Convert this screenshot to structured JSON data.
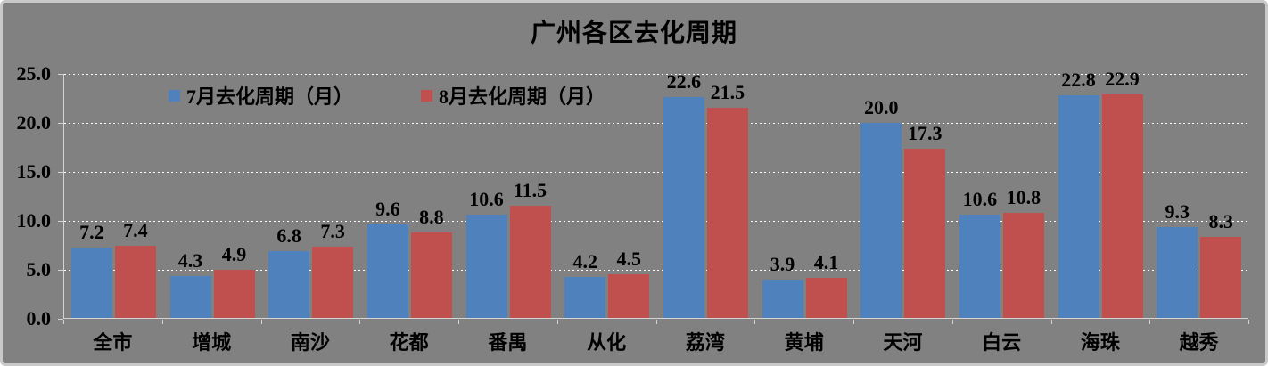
{
  "chart_data": {
    "type": "bar",
    "title": "广州各区去化周期",
    "categories": [
      "全市",
      "增城",
      "南沙",
      "花都",
      "番禺",
      "从化",
      "荔湾",
      "黄埔",
      "天河",
      "白云",
      "海珠",
      "越秀"
    ],
    "series": [
      {
        "name": "7月去化周期（月）",
        "color": "#4F81BD",
        "values": [
          7.2,
          4.3,
          6.8,
          9.6,
          10.6,
          4.2,
          22.6,
          3.9,
          20.0,
          10.6,
          22.8,
          9.3
        ]
      },
      {
        "name": "8月去化周期（月）",
        "color": "#C0504D",
        "values": [
          7.4,
          4.9,
          7.3,
          8.8,
          11.5,
          4.5,
          21.5,
          4.1,
          17.3,
          10.8,
          22.9,
          8.3
        ]
      }
    ],
    "ylim": [
      0,
      25
    ],
    "ytick_step": 5,
    "ytick_labels": [
      "0.0",
      "5.0",
      "10.0",
      "15.0",
      "20.0",
      "25.0"
    ],
    "data_label_decimals": 1,
    "grid": "horizontal-dotted",
    "legend_position": "top-left-inside",
    "colors": {
      "background": "#818181",
      "frame_border": "#C9C9C9",
      "gridline": "#FFFFFF",
      "axis_line": "#D4D4D4",
      "text": "#000000"
    }
  }
}
